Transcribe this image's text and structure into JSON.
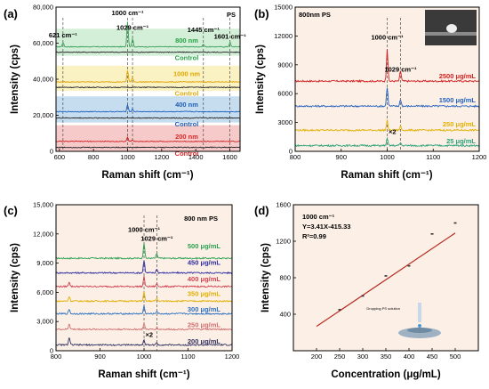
{
  "panels": [
    {
      "id": "a",
      "label": "(a)",
      "corner_text": "PS",
      "ylabel": "Intensity (cps)",
      "xlabel": "Raman shift (cm⁻¹)",
      "xlim": [
        580,
        1660
      ],
      "ylim": [
        0,
        80000
      ],
      "xticks": [
        {
          "v": 600,
          "t": "600"
        },
        {
          "v": 800,
          "t": "800"
        },
        {
          "v": 1000,
          "t": "1000"
        },
        {
          "v": 1200,
          "t": "1200"
        },
        {
          "v": 1400,
          "t": "1400"
        },
        {
          "v": 1600,
          "t": "1600"
        }
      ],
      "yticks": [
        {
          "v": 0,
          "t": "0"
        },
        {
          "v": 20000,
          "t": "20,000"
        },
        {
          "v": 40000,
          "t": "40,000"
        },
        {
          "v": 60000,
          "t": "60,000"
        },
        {
          "v": 80000,
          "t": "80,000"
        }
      ],
      "bands": [
        {
          "from": 53000,
          "to": 68000,
          "color": "#d4efd8"
        },
        {
          "from": 33500,
          "to": 47500,
          "color": "#fbf2c4"
        },
        {
          "from": 16000,
          "to": 30500,
          "color": "#c6ddf0"
        },
        {
          "from": 0,
          "to": 14500,
          "color": "#f7caca"
        }
      ],
      "series": [
        {
          "name": "800 nm",
          "label_color": "#25a244",
          "color": "#3aa05a",
          "base": 58000,
          "peaks": [
            [
              621,
              2500
            ],
            [
              1000,
              14000
            ],
            [
              1029,
              4500
            ],
            [
              1445,
              1500
            ],
            [
              1601,
              2500
            ]
          ],
          "label_y": 61200
        },
        {
          "name": "Control",
          "label_color": "#25a244",
          "color": "#222222",
          "base": 55000,
          "peaks": [],
          "label_y": 51600
        },
        {
          "name": "1000 nm",
          "label_color": "#e0a800",
          "color": "#e0a000",
          "base": 38500,
          "peaks": [
            [
              1000,
              6500
            ],
            [
              1029,
              2500
            ]
          ],
          "label_y": 42700
        },
        {
          "name": "Control",
          "label_color": "#e0a800",
          "color": "#222222",
          "base": 35500,
          "peaks": [],
          "label_y": 31800
        },
        {
          "name": "400 nm",
          "label_color": "#1f5fb4",
          "color": "#2060c0",
          "base": 22000,
          "peaks": [
            [
              1000,
              4000
            ],
            [
              1029,
              1500
            ]
          ],
          "label_y": 25600
        },
        {
          "name": "Control",
          "label_color": "#1f5fb4",
          "color": "#222222",
          "base": 18500,
          "peaks": [],
          "label_y": 14700
        },
        {
          "name": "200 nm",
          "label_color": "#d62828",
          "color": "#d02020",
          "base": 5500,
          "peaks": [
            [
              1000,
              2200
            ],
            [
              1029,
              800
            ]
          ],
          "label_y": 8000
        },
        {
          "name": "Control",
          "label_color": "#d62828",
          "color": "#222222",
          "base": 2200,
          "peaks": [],
          "label_y": -1400
        }
      ],
      "peak_labels": [
        {
          "x": 621,
          "y": 63200,
          "text": "621 cm⁻¹"
        },
        {
          "x": 1000,
          "y": 75500,
          "text": "1000 cm⁻¹"
        },
        {
          "x": 1029,
          "y": 67500,
          "text": "1029 cm⁻¹"
        },
        {
          "x": 1445,
          "y": 66200,
          "text": "1445 cm⁻¹"
        },
        {
          "x": 1601,
          "y": 62500,
          "text": "1601 cm⁻¹"
        }
      ],
      "vlines": [
        621,
        1000,
        1029,
        1445,
        1601
      ]
    },
    {
      "id": "b",
      "label": "(b)",
      "corner_text": "800nm PS",
      "ylabel": "Intensity (cps)",
      "xlabel": "Raman shift (cm⁻¹)",
      "xlim": [
        800,
        1200
      ],
      "ylim": [
        0,
        15000
      ],
      "xticks": [
        {
          "v": 800,
          "t": "800"
        },
        {
          "v": 900,
          "t": "900"
        },
        {
          "v": 1000,
          "t": "1000"
        },
        {
          "v": 1100,
          "t": "1100"
        },
        {
          "v": 1200,
          "t": "1200"
        }
      ],
      "yticks": [
        {
          "v": 0,
          "t": "0"
        },
        {
          "v": 3000,
          "t": "3000"
        },
        {
          "v": 6000,
          "t": "6000"
        },
        {
          "v": 9000,
          "t": "9000"
        },
        {
          "v": 12000,
          "t": "12000"
        },
        {
          "v": 15000,
          "t": "15000"
        }
      ],
      "series": [
        {
          "name": "2500 μg/mL",
          "color": "#d02020",
          "base": 7300,
          "peaks": [
            [
              1000,
              3400
            ],
            [
              1029,
              1100
            ]
          ],
          "label_y": 7800
        },
        {
          "name": "1500 μg/mL",
          "color": "#2060c0",
          "base": 4700,
          "peaks": [
            [
              1000,
              2000
            ],
            [
              1029,
              700
            ]
          ],
          "label_y": 5300
        },
        {
          "name": "250 μg/mL",
          "color": "#e0b000",
          "base": 2200,
          "peaks": [
            [
              1000,
              1000
            ],
            [
              1029,
              400
            ]
          ],
          "label_y": 2800
        },
        {
          "name": "25 μg/mL",
          "color": "#2aa07a",
          "base": 600,
          "peaks": [
            [
              1000,
              700
            ],
            [
              1029,
              300
            ]
          ],
          "label_y": 1000
        }
      ],
      "peak_labels": [
        {
          "x": 1000,
          "y": 11600,
          "text": "1000 cm⁻¹"
        },
        {
          "x": 1029,
          "y": 8300,
          "text": "1029 cm⁻¹"
        }
      ],
      "vlines": [
        1000,
        1029
      ],
      "note": {
        "x": 1003,
        "y": 1800,
        "text": "×2"
      }
    },
    {
      "id": "c",
      "label": "(c)",
      "corner_text": "800 nm PS",
      "ylabel": "Intensity (cps)",
      "xlabel": "Raman shift (cm⁻¹)",
      "xlim": [
        800,
        1200
      ],
      "ylim": [
        0,
        15000
      ],
      "xticks": [
        {
          "v": 800,
          "t": "800"
        },
        {
          "v": 900,
          "t": "900"
        },
        {
          "v": 1000,
          "t": "1000"
        },
        {
          "v": 1100,
          "t": "1100"
        },
        {
          "v": 1200,
          "t": "1200"
        }
      ],
      "yticks": [
        {
          "v": 0,
          "t": "0"
        },
        {
          "v": 3000,
          "t": "3,000"
        },
        {
          "v": 6000,
          "t": "6,000"
        },
        {
          "v": 9000,
          "t": "9,000"
        },
        {
          "v": 12000,
          "t": "12,000"
        },
        {
          "v": 15000,
          "t": "15,000"
        }
      ],
      "series": [
        {
          "name": "500 μg/mL",
          "color": "#2aa050",
          "base": 9500,
          "peaks": [
            [
              1000,
              1600
            ],
            [
              1029,
              500
            ]
          ],
          "label_y": 10700
        },
        {
          "name": "450 μg/mL",
          "color": "#2a2aa0",
          "base": 8000,
          "peaks": [
            [
              1000,
              1300
            ],
            [
              1029,
              400
            ]
          ],
          "label_y": 9000
        },
        {
          "name": "400 μg/mL",
          "color": "#d04050",
          "base": 6600,
          "peaks": [
            [
              830,
              500
            ],
            [
              1000,
              1000
            ],
            [
              1029,
              300
            ]
          ],
          "label_y": 7300
        },
        {
          "name": "350 μg/mL",
          "color": "#e0b000",
          "base": 5100,
          "peaks": [
            [
              830,
              500
            ],
            [
              1000,
              900
            ],
            [
              1029,
              300
            ]
          ],
          "label_y": 5800
        },
        {
          "name": "300 μg/mL",
          "color": "#2a70c0",
          "base": 3800,
          "peaks": [
            [
              830,
              500
            ],
            [
              1000,
              800
            ],
            [
              1029,
              300
            ]
          ],
          "label_y": 4200
        },
        {
          "name": "250 μg/mL",
          "color": "#d07070",
          "base": 2200,
          "peaks": [
            [
              830,
              600
            ],
            [
              1000,
              600
            ],
            [
              1029,
              200
            ]
          ],
          "label_y": 2600
        },
        {
          "name": "200 μg/mL",
          "color": "#303060",
          "base": 600,
          "peaks": [
            [
              830,
              800
            ],
            [
              1000,
              500
            ],
            [
              1029,
              200
            ]
          ],
          "label_y": 900
        }
      ],
      "peak_labels": [
        {
          "x": 1000,
          "y": 12200,
          "text": "1000 cm⁻¹"
        },
        {
          "x": 1029,
          "y": 11300,
          "text": "1029 cm⁻¹"
        }
      ],
      "vlines": [
        1000,
        1029
      ],
      "note": {
        "x": 1003,
        "y": 1400,
        "text": "×2"
      }
    },
    {
      "id": "d",
      "label": "(d)",
      "ylabel": "Intensity (cps)",
      "xlabel": "Concentration (μg/mL)",
      "xlim": [
        150,
        550
      ],
      "ylim": [
        0,
        1600
      ],
      "xticks": [
        {
          "v": 200,
          "t": "200"
        },
        {
          "v": 250,
          "t": "250"
        },
        {
          "v": 300,
          "t": "300"
        },
        {
          "v": 350,
          "t": "350"
        },
        {
          "v": 400,
          "t": "400"
        },
        {
          "v": 450,
          "t": "450"
        },
        {
          "v": 500,
          "t": "500"
        }
      ],
      "yticks": [
        {
          "v": 400,
          "t": "400"
        },
        {
          "v": 800,
          "t": "800"
        },
        {
          "v": 1200,
          "t": "1200"
        },
        {
          "v": 1600,
          "t": "1600"
        }
      ],
      "annotation_lines": [
        "1000 cm⁻¹",
        "Y=3.41X-415.33",
        "R²=0.99"
      ],
      "inset_caption": "Dropping PS solution"
    }
  ],
  "chart_data": [
    {
      "type": "line",
      "panel": "a",
      "ylabel": "Intensity (cps)",
      "xlabel": "Raman shift (cm⁻¹)",
      "xlim": [
        580,
        1660
      ],
      "ylim": [
        0,
        80000
      ],
      "series": [
        {
          "name": "800 nm",
          "peak_positions": [
            621,
            1000,
            1029,
            1445,
            1601
          ]
        },
        {
          "name": "1000 nm",
          "peak_positions": [
            1000,
            1029
          ]
        },
        {
          "name": "400 nm",
          "peak_positions": [
            1000,
            1029
          ]
        },
        {
          "name": "200 nm",
          "peak_positions": [
            1000,
            1029
          ]
        }
      ]
    },
    {
      "type": "line",
      "panel": "b",
      "ylabel": "Intensity (cps)",
      "xlabel": "Raman shift (cm⁻¹)",
      "xlim": [
        800,
        1200
      ],
      "ylim": [
        0,
        15000
      ],
      "series": [
        {
          "name": "2500 μg/mL",
          "peak_intensity_1000": 10700
        },
        {
          "name": "1500 μg/mL",
          "peak_intensity_1000": 6700
        },
        {
          "name": "250 μg/mL",
          "peak_intensity_1000": 3200
        },
        {
          "name": "25 μg/mL",
          "peak_intensity_1000": 1300
        }
      ]
    },
    {
      "type": "line",
      "panel": "c",
      "ylabel": "Intensity (cps)",
      "xlabel": "Raman shift (cm⁻¹)",
      "xlim": [
        800,
        1200
      ],
      "ylim": [
        0,
        15000
      ],
      "series": [
        {
          "name": "500 μg/mL",
          "peak_intensity_1000": 11100
        },
        {
          "name": "450 μg/mL",
          "peak_intensity_1000": 9300
        },
        {
          "name": "400 μg/mL",
          "peak_intensity_1000": 7600
        },
        {
          "name": "350 μg/mL",
          "peak_intensity_1000": 6000
        },
        {
          "name": "300 μg/mL",
          "peak_intensity_1000": 4600
        },
        {
          "name": "250 μg/mL",
          "peak_intensity_1000": 2800
        },
        {
          "name": "200 μg/mL",
          "peak_intensity_1000": 1100
        }
      ]
    },
    {
      "type": "scatter",
      "panel": "d",
      "xlabel": "Concentration (μg/mL)",
      "ylabel": "Intensity (cps)",
      "xlim": [
        150,
        550
      ],
      "ylim": [
        0,
        1600
      ],
      "x": [
        250,
        300,
        350,
        400,
        450,
        500
      ],
      "y": [
        450,
        600,
        820,
        930,
        1280,
        1400
      ],
      "fit": {
        "slope": 3.41,
        "intercept": -415.33,
        "r2": 0.99,
        "x_range": [
          200,
          500
        ]
      }
    }
  ]
}
